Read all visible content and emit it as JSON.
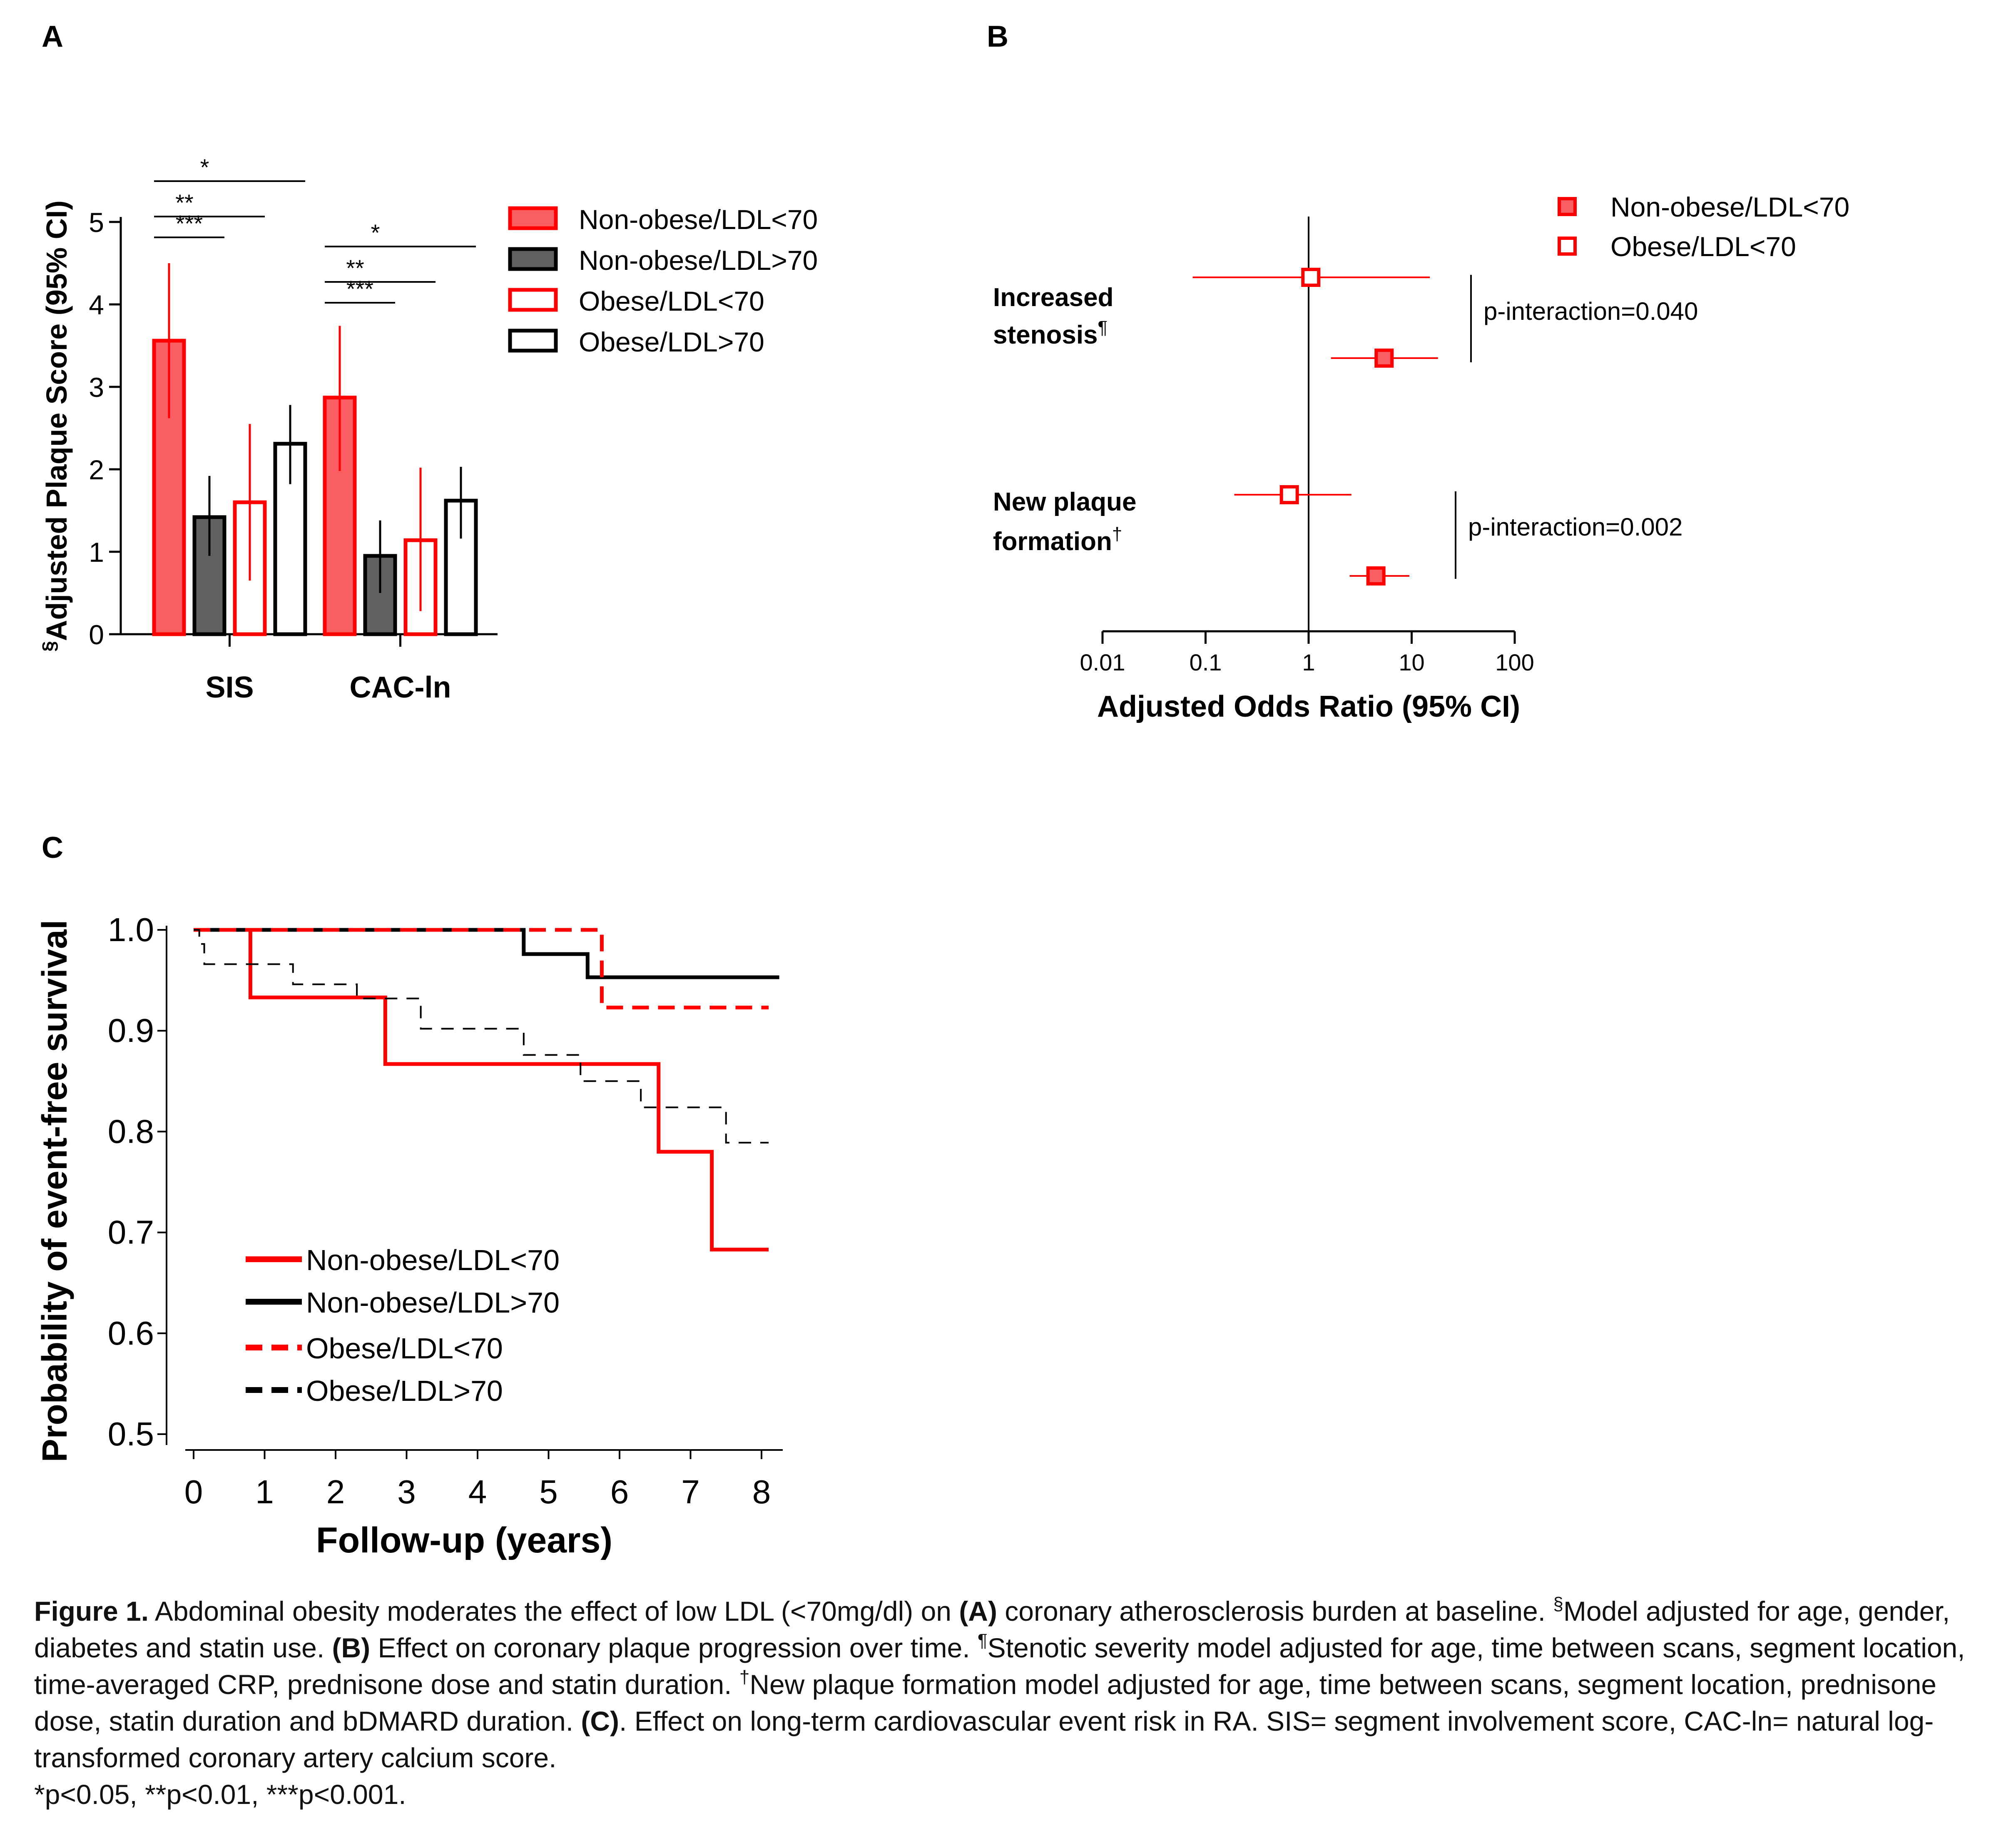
{
  "colors": {
    "red": "#ff0000",
    "red_fill": "#f85e62",
    "dark_fill": "#606060",
    "black": "#000000"
  },
  "panel_a": {
    "letter": "A",
    "chart_data": {
      "type": "bar",
      "title": "",
      "ylabel_marker": "§",
      "ylabel": "Adjusted Plaque Score (95% CI)",
      "xlabel": "",
      "ylim": [
        0,
        5
      ],
      "yticks": [
        0,
        1,
        2,
        3,
        4,
        5
      ],
      "categories": [
        "SIS",
        "CAC-ln"
      ],
      "series": [
        {
          "name": "Non-obese/LDL<70",
          "style": "red-filled",
          "values": [
            3.56,
            2.87
          ],
          "ci_low": [
            2.62,
            1.98
          ],
          "ci_high": [
            4.5,
            3.74
          ]
        },
        {
          "name": "Non-obese/LDL>70",
          "style": "dark-filled",
          "values": [
            1.42,
            0.95
          ],
          "ci_low": [
            0.95,
            0.5
          ],
          "ci_high": [
            1.92,
            1.38
          ]
        },
        {
          "name": "Obese/LDL<70",
          "style": "red-outline",
          "values": [
            1.6,
            1.14
          ],
          "ci_low": [
            0.65,
            0.28
          ],
          "ci_high": [
            2.55,
            2.02
          ]
        },
        {
          "name": "Obese/LDL>70",
          "style": "black-outline",
          "values": [
            2.31,
            1.62
          ],
          "ci_low": [
            1.82,
            1.16
          ],
          "ci_high": [
            2.78,
            2.03
          ]
        }
      ],
      "significance": [
        {
          "category": 0,
          "from": 0,
          "to": 1,
          "label": "***"
        },
        {
          "category": 0,
          "from": 0,
          "to": 2,
          "label": "**"
        },
        {
          "category": 0,
          "from": 0,
          "to": 3,
          "label": "*"
        },
        {
          "category": 1,
          "from": 0,
          "to": 1,
          "label": "***"
        },
        {
          "category": 1,
          "from": 0,
          "to": 2,
          "label": "**"
        },
        {
          "category": 1,
          "from": 0,
          "to": 3,
          "label": "*"
        }
      ],
      "legend_position": "right"
    }
  },
  "panel_b": {
    "letter": "B",
    "chart_data": {
      "type": "forest",
      "title": "",
      "xlabel": "Adjusted Odds Ratio (95% CI)",
      "xscale": "log",
      "xlim": [
        0.01,
        100
      ],
      "xticks": [
        "0.01",
        "0.1",
        "1",
        "10",
        "100"
      ],
      "reference_line": 1,
      "legend": [
        {
          "name": "Non-obese/LDL<70",
          "style": "filled"
        },
        {
          "name": "Obese/LDL<70",
          "style": "open"
        }
      ],
      "legend_position": "top-right",
      "outcomes": [
        {
          "label_lines": [
            "Increased",
            "stenosis"
          ],
          "label_sup": "¶",
          "p_interaction": "p-interaction=0.040",
          "points": [
            {
              "group": "Obese/LDL<70",
              "style": "open",
              "or": 1.05,
              "ci": [
                0.075,
                15
              ]
            },
            {
              "group": "Non-obese/LDL<70",
              "style": "filled",
              "or": 5.4,
              "ci": [
                1.65,
                18
              ]
            }
          ]
        },
        {
          "label_lines": [
            "New plaque",
            "formation"
          ],
          "label_sup": "†",
          "p_interaction": "p-interaction=0.002",
          "points": [
            {
              "group": "Obese/LDL<70",
              "style": "open",
              "or": 0.65,
              "ci": [
                0.19,
                2.6
              ]
            },
            {
              "group": "Non-obese/LDL<70",
              "style": "filled",
              "or": 4.5,
              "ci": [
                2.5,
                9.5
              ]
            }
          ]
        }
      ]
    }
  },
  "panel_c": {
    "letter": "C",
    "chart_data": {
      "type": "line",
      "subtype": "kaplan-meier step",
      "title": "",
      "xlabel": "Follow-up (years)",
      "ylabel": "Probability of event-free survival",
      "xlim": [
        0,
        8.2
      ],
      "ylim": [
        0.5,
        1.0
      ],
      "xticks": [
        0,
        1,
        2,
        3,
        4,
        5,
        6,
        7,
        8
      ],
      "yticks": [
        "0.5",
        "0.6",
        "0.7",
        "0.8",
        "0.9",
        "1.0"
      ],
      "legend_position": "bottom-left",
      "series": [
        {
          "name": "Non-obese/LDL<70",
          "color": "#ff0000",
          "dash": "solid",
          "x": [
            0,
            0.8,
            2.7,
            6.55,
            7.3,
            8.1
          ],
          "y": [
            1.0,
            0.933,
            0.867,
            0.78,
            0.683,
            0.683
          ]
        },
        {
          "name": "Non-obese/LDL>70",
          "color": "#000000",
          "dash": "solid",
          "x": [
            0,
            4.65,
            5.55,
            8.25
          ],
          "y": [
            1.0,
            0.976,
            0.953,
            0.953
          ]
        },
        {
          "name": "Obese/LDL<70",
          "color": "#ff0000",
          "dash": "dashed",
          "x": [
            0,
            5.75,
            8.1
          ],
          "y": [
            1.0,
            0.923,
            0.923
          ]
        },
        {
          "name": "Obese/LDL>70",
          "color": "#000000",
          "dash": "dashed",
          "x": [
            0,
            0.08,
            0.15,
            1.4,
            2.3,
            3.2,
            4.65,
            5.45,
            6.3,
            7.5,
            8.1
          ],
          "y": [
            1.0,
            0.986,
            0.966,
            0.946,
            0.932,
            0.902,
            0.876,
            0.85,
            0.824,
            0.789,
            0.789
          ]
        }
      ]
    }
  },
  "caption": {
    "figure_label": "Figure 1.",
    "s1": " Abdominal obesity moderates the effect of low LDL (<70mg/dl) on ",
    "a_label": "(A)",
    "s2": " coronary atherosclerosis burden at baseline. ",
    "sym1": "§",
    "s3": "Model adjusted for age, gender, diabetes and statin use.  ",
    "b_label": "(B)",
    "s4": " Effect on coronary plaque progression over time. ",
    "sym2": "¶",
    "s5": "Stenotic severity model adjusted for age, time between scans, segment location, time-averaged CRP, prednisone dose and statin duration. ",
    "sym3": "†",
    "s6": "New plaque formation model adjusted for age, time between scans, segment location, prednisone dose, statin duration and bDMARD duration. ",
    "c_label": "(C)",
    "s7": ". Effect on long-term cardiovascular event risk in RA. SIS= segment involvement score, CAC-ln= natural log-transformed coronary artery calcium score.",
    "s8": "*p<0.05, **p<0.01, ***p<0.001."
  }
}
